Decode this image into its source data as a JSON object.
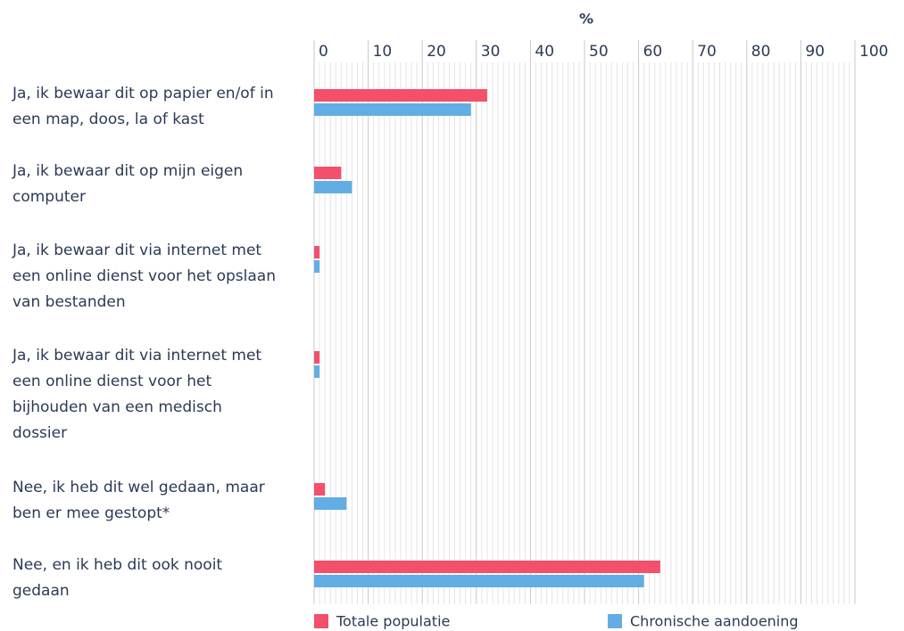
{
  "chart_data": {
    "type": "bar",
    "orientation": "horizontal",
    "xlabel": "%",
    "categories": [
      "Ja, ik bewaar dit op papier en/of in een map, doos, la of kast",
      "Ja, ik bewaar dit op mijn eigen computer",
      "Ja, ik bewaar dit via internet met een online dienst voor het opslaan van bestanden",
      "Ja, ik bewaar dit via internet met een online dienst voor het bijhouden van een medisch dossier",
      "Nee, ik heb dit wel gedaan, maar ben er mee gestopt*",
      "Nee, en ik heb dit ook nooit gedaan"
    ],
    "series": [
      {
        "name": "Totale populatie",
        "color": "#f2506b",
        "values": [
          32,
          5,
          1,
          1,
          2,
          64
        ]
      },
      {
        "name": "Chronische aandoening",
        "color": "#62aee4",
        "values": [
          29,
          7,
          1,
          1,
          6,
          61
        ]
      }
    ],
    "xlim": [
      0,
      100
    ],
    "xticks": [
      0,
      10,
      20,
      30,
      40,
      50,
      60,
      70,
      80,
      90,
      100
    ],
    "grid": true,
    "minor_grid": true,
    "legend": "bottom"
  }
}
